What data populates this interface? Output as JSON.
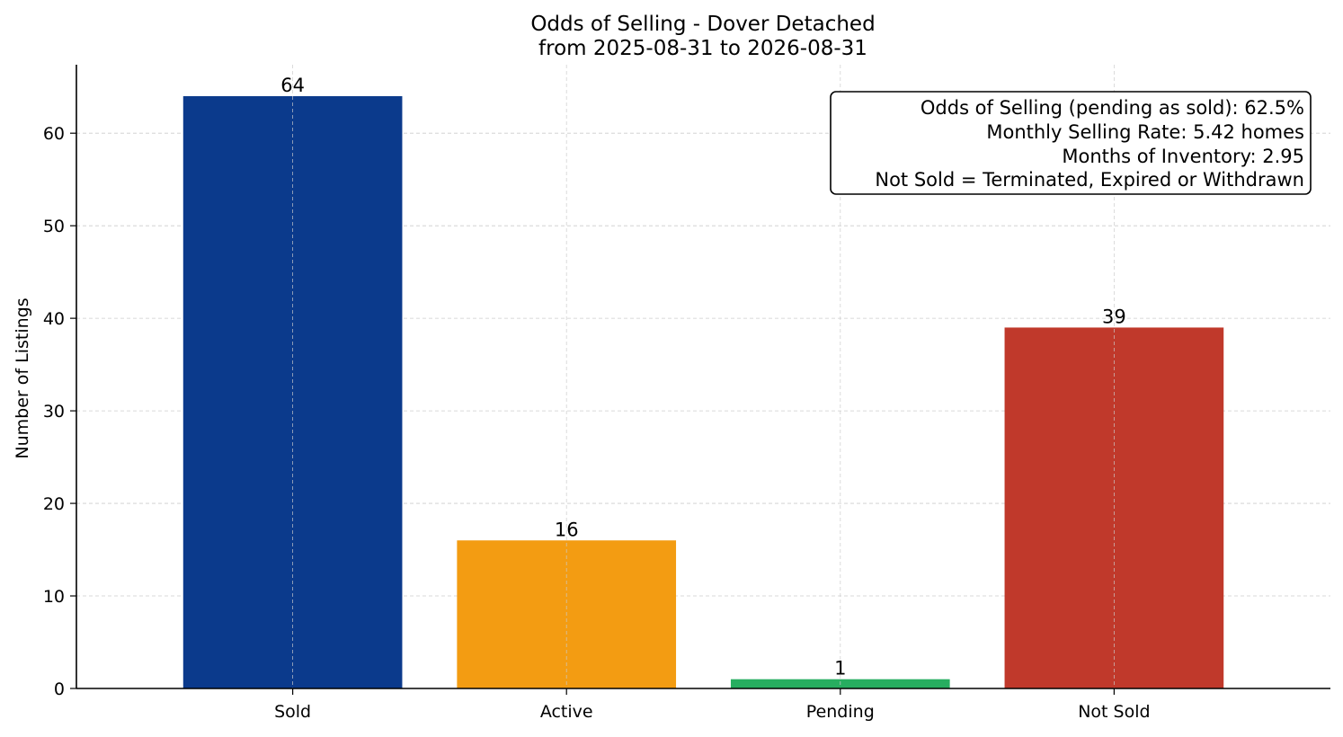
{
  "chart_data": {
    "type": "bar",
    "title_line1": "Odds of Selling - Dover Detached",
    "title_line2": "from 2025-08-31 to 2026-08-31",
    "xlabel": "",
    "ylabel": "Number of Listings",
    "categories": [
      "Sold",
      "Active",
      "Pending",
      "Not Sold"
    ],
    "values": [
      64,
      16,
      1,
      39
    ],
    "colors": [
      "#0b3a8c",
      "#f39c12",
      "#27ae60",
      "#c0392b"
    ],
    "data_labels": [
      "64",
      "16",
      "1",
      "39"
    ],
    "ylim": [
      0,
      67.4
    ],
    "yticks": [
      0,
      10,
      20,
      30,
      40,
      50,
      60
    ],
    "ytick_labels": [
      "0",
      "10",
      "20",
      "30",
      "40",
      "50",
      "60"
    ],
    "grid": true,
    "info_box": {
      "placement": "top-right",
      "lines": [
        "Odds of Selling (pending as sold): 62.5%",
        "Monthly Selling Rate: 5.42 homes",
        "Months of Inventory: 2.95",
        "Not Sold = Terminated, Expired or Withdrawn"
      ]
    }
  }
}
